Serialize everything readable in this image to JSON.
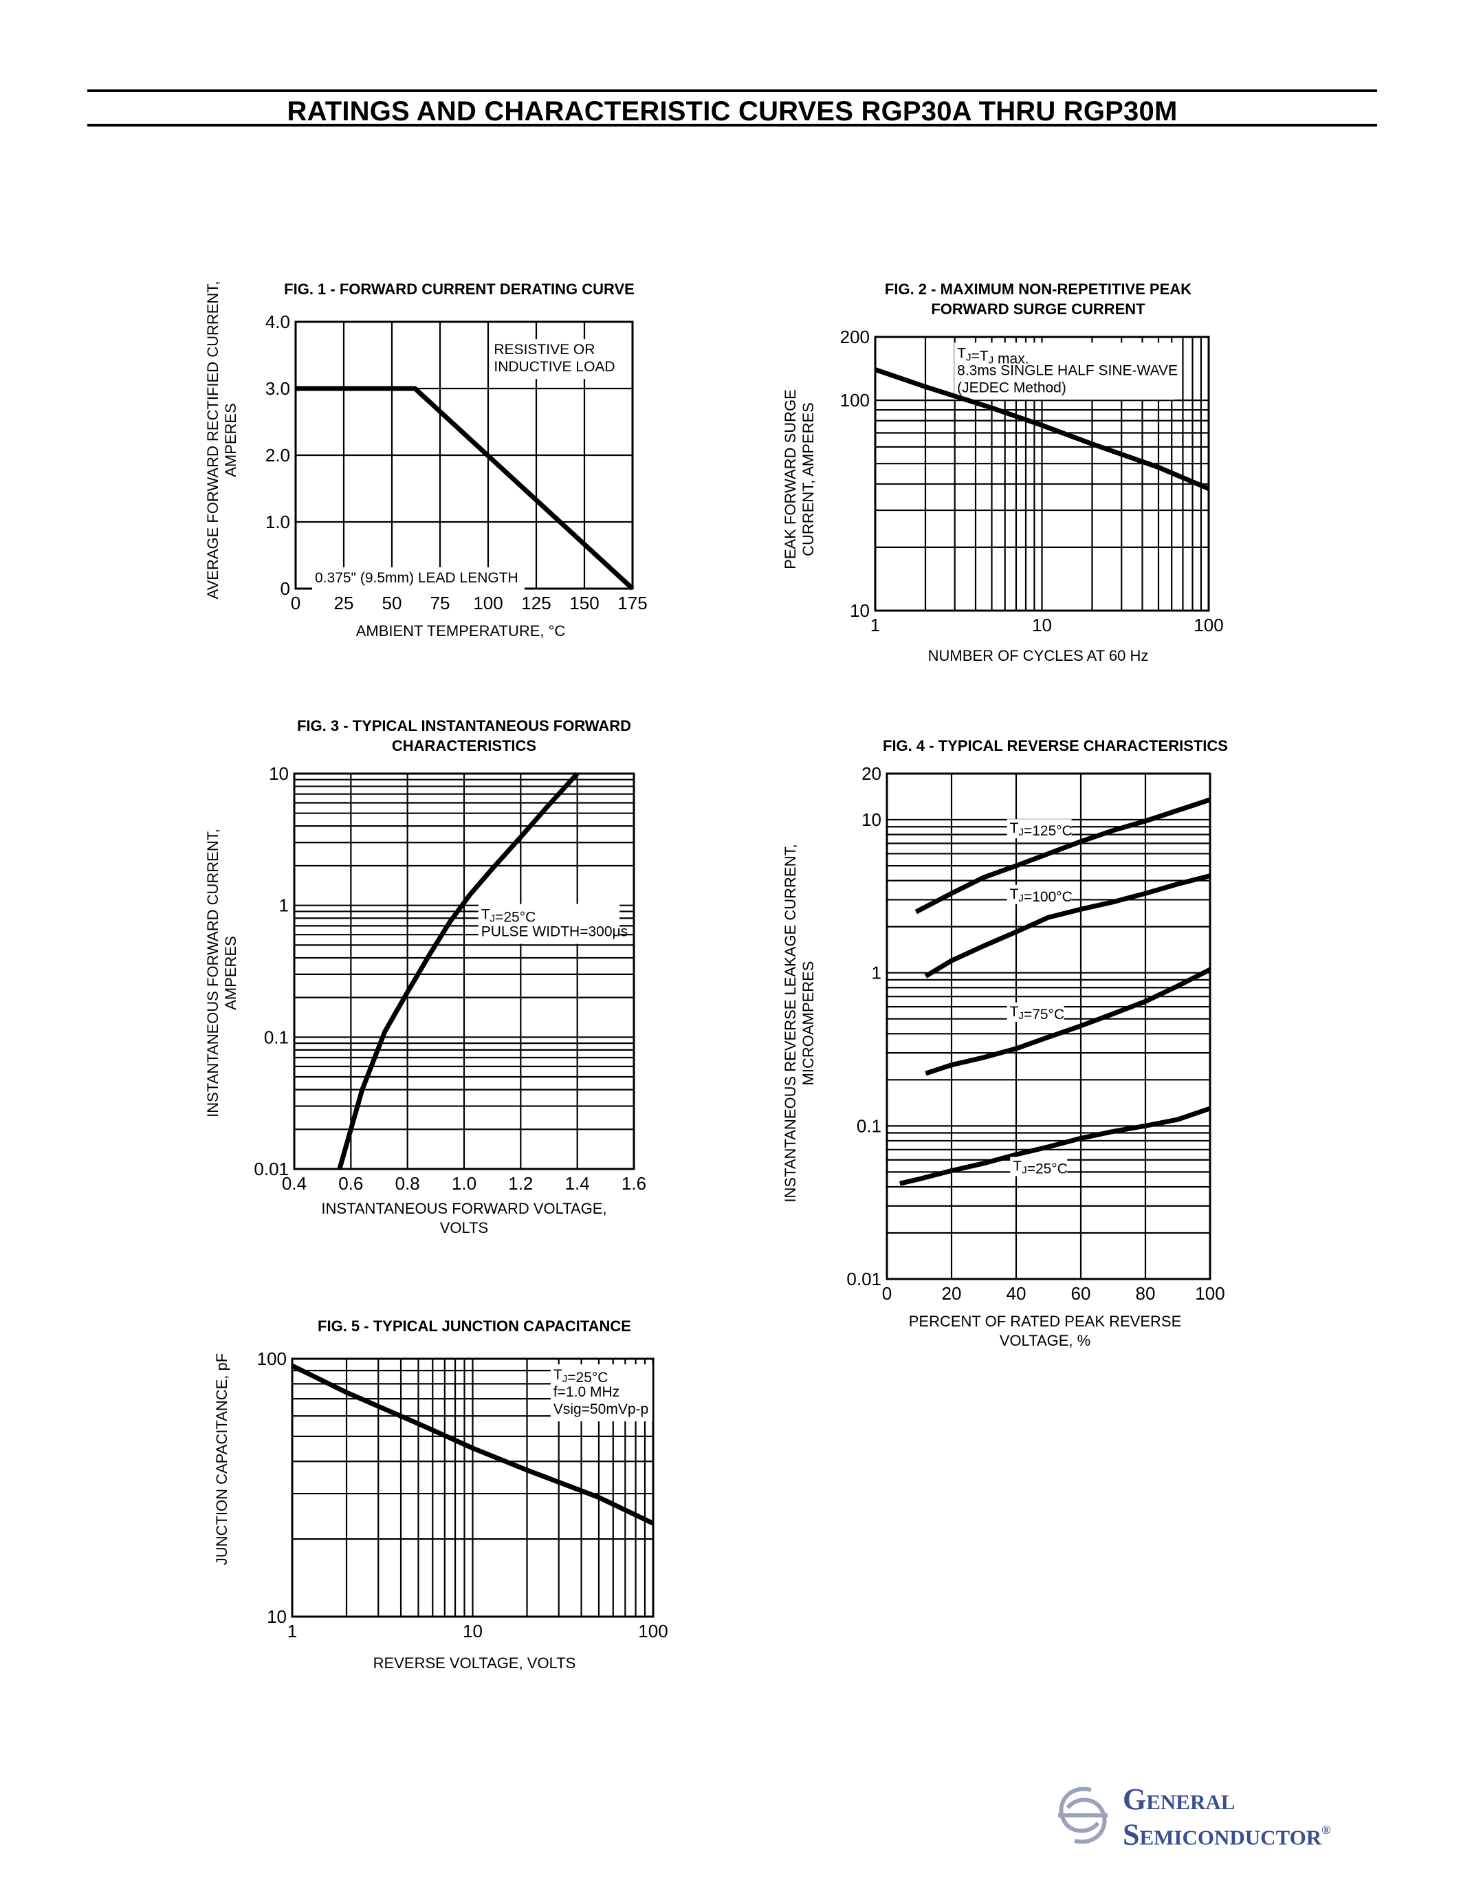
{
  "page": {
    "title": "RATINGS AND CHARACTERISTIC CURVES RGP30A THRU RGP30M",
    "logo": {
      "line1": "General",
      "line2": "Semiconductor",
      "mark": "®",
      "icon": "gs-logo-icon",
      "color": "#3b4f8f"
    }
  },
  "chart_data": [
    {
      "id": "fig1",
      "type": "line",
      "title": "FIG. 1 -  FORWARD CURRENT DERATING CURVE",
      "xlabel": "AMBIENT TEMPERATURE, °C",
      "ylabel": [
        "AVERAGE FORWARD RECTIFIED CURRENT,",
        "AMPERES"
      ],
      "xscale": "linear",
      "yscale": "linear",
      "xlim": [
        0,
        175
      ],
      "ylim": [
        0,
        4
      ],
      "xticks": [
        0,
        25,
        50,
        75,
        100,
        125,
        150,
        175
      ],
      "xtick_labels": [
        "0",
        "25",
        "50",
        "75",
        "100",
        "125",
        "150",
        "175"
      ],
      "yticks": [
        0,
        1,
        2,
        3,
        4
      ],
      "ytick_labels": [
        "0",
        "1.0",
        "2.0",
        "3.0",
        "4.0"
      ],
      "grid_x": [
        25,
        50,
        75,
        100,
        125,
        150
      ],
      "grid_y": [
        1,
        2,
        3
      ],
      "annotations": [
        {
          "lines": [
            "RESISTIVE OR",
            "INDUCTIVE LOAD"
          ],
          "x": 103,
          "y": 3.72
        },
        {
          "lines": [
            "0.375\" (9.5mm) LEAD LENGTH"
          ],
          "x": 10,
          "y": 0.3
        }
      ],
      "series": [
        {
          "x": [
            0,
            62,
            175
          ],
          "y": [
            3,
            3,
            0
          ]
        }
      ]
    },
    {
      "id": "fig2",
      "type": "line",
      "title": [
        "FIG. 2 - MAXIMUM NON-REPETITIVE PEAK",
        "FORWARD SURGE CURRENT"
      ],
      "xlabel": "NUMBER OF CYCLES AT 60 Hz",
      "ylabel": [
        "PEAK FORWARD SURGE",
        "CURRENT, AMPERES"
      ],
      "xscale": "log",
      "yscale": "log",
      "xlim": [
        1,
        100
      ],
      "ylim": [
        10,
        200
      ],
      "xticks": [
        1,
        10,
        100
      ],
      "xtick_labels": [
        "1",
        "10",
        "100"
      ],
      "yticks": [
        10,
        100,
        200
      ],
      "ytick_labels": [
        "10",
        "100",
        "200"
      ],
      "annotations": [
        {
          "lines": [
            "TJ=TJ max.",
            "8.3ms SINGLE HALF SINE-WAVE",
            "(JEDEC Method)"
          ],
          "x": 3.1,
          "y": 185
        }
      ],
      "series": [
        {
          "x": [
            1,
            2,
            5,
            10,
            20,
            50,
            100
          ],
          "y": [
            140,
            116,
            92,
            76,
            62,
            48,
            38
          ]
        }
      ]
    },
    {
      "id": "fig3",
      "type": "line",
      "title": [
        "FIG. 3 - TYPICAL INSTANTANEOUS FORWARD",
        "CHARACTERISTICS"
      ],
      "xlabel": [
        "INSTANTANEOUS FORWARD VOLTAGE,",
        "VOLTS"
      ],
      "ylabel": [
        "INSTANTANEOUS FORWARD CURRENT,",
        "AMPERES"
      ],
      "xscale": "linear",
      "yscale": "log",
      "xlim": [
        0.4,
        1.6
      ],
      "ylim": [
        0.01,
        10
      ],
      "xticks": [
        0.4,
        0.6,
        0.8,
        1.0,
        1.2,
        1.4,
        1.6
      ],
      "xtick_labels": [
        "0.4",
        "0.6",
        "0.8",
        "1.0",
        "1.2",
        "1.4",
        "1.6"
      ],
      "yticks": [
        0.01,
        0.1,
        1,
        10
      ],
      "ytick_labels": [
        "0.01",
        "0.1",
        "1",
        "10"
      ],
      "grid_x": [
        0.6,
        0.8,
        1.0,
        1.2,
        1.4
      ],
      "annotations": [
        {
          "lines": [
            "TJ=25°C",
            "PULSE WIDTH=300μs"
          ],
          "x": 1.06,
          "y": 1.0
        }
      ],
      "series": [
        {
          "x": [
            0.56,
            0.64,
            0.72,
            0.8,
            0.88,
            0.95,
            1.02,
            1.1,
            1.2,
            1.3,
            1.4
          ],
          "y": [
            0.01,
            0.04,
            0.11,
            0.22,
            0.43,
            0.75,
            1.2,
            1.9,
            3.3,
            5.8,
            10
          ]
        }
      ]
    },
    {
      "id": "fig4",
      "type": "line",
      "title": "FIG. 4 - TYPICAL REVERSE CHARACTERISTICS",
      "xlabel": [
        "PERCENT OF RATED PEAK REVERSE",
        "VOLTAGE, %"
      ],
      "ylabel": [
        "INSTANTANEOUS REVERSE LEAKAGE CURRENT,",
        "MICROAMPERES"
      ],
      "xscale": "linear",
      "yscale": "log",
      "xlim": [
        0,
        100
      ],
      "ylim": [
        0.01,
        20
      ],
      "xticks": [
        0,
        20,
        40,
        60,
        80,
        100
      ],
      "xtick_labels": [
        "0",
        "20",
        "40",
        "60",
        "80",
        "100"
      ],
      "yticks": [
        0.01,
        0.1,
        1,
        10,
        20
      ],
      "ytick_labels": [
        "0.01",
        "0.1",
        "1",
        "10",
        "20"
      ],
      "grid_x": [
        20,
        40,
        60,
        80
      ],
      "series": [
        {
          "name": "TJ=125°C",
          "x": [
            9,
            20,
            30,
            40,
            50,
            60,
            70,
            80,
            90,
            100
          ],
          "y": [
            2.5,
            3.3,
            4.2,
            5.0,
            6.0,
            7.2,
            8.5,
            9.8,
            11.5,
            13.5
          ],
          "label_x": 38,
          "label_y": 8.2
        },
        {
          "name": "TJ=100°C",
          "x": [
            12,
            20,
            30,
            40,
            50,
            60,
            70,
            80,
            90,
            100
          ],
          "y": [
            0.95,
            1.2,
            1.5,
            1.85,
            2.3,
            2.6,
            2.9,
            3.3,
            3.8,
            4.3
          ],
          "label_x": 38,
          "label_y": 3.05
        },
        {
          "name": "TJ=75°C",
          "x": [
            12,
            20,
            30,
            40,
            50,
            60,
            70,
            80,
            90,
            100
          ],
          "y": [
            0.22,
            0.25,
            0.28,
            0.32,
            0.38,
            0.45,
            0.54,
            0.65,
            0.82,
            1.05
          ],
          "label_x": 38,
          "label_y": 0.52
        },
        {
          "name": "TJ=25°C",
          "x": [
            4,
            10,
            20,
            30,
            40,
            50,
            60,
            70,
            80,
            90,
            100
          ],
          "y": [
            0.042,
            0.045,
            0.051,
            0.057,
            0.065,
            0.073,
            0.083,
            0.092,
            0.1,
            0.11,
            0.13
          ],
          "label_x": 39,
          "label_y": 0.051
        }
      ]
    },
    {
      "id": "fig5",
      "type": "line",
      "title": "FIG. 5 - TYPICAL JUNCTION CAPACITANCE",
      "xlabel": "REVERSE VOLTAGE, VOLTS",
      "ylabel": "JUNCTION CAPACITANCE, pF",
      "xscale": "log",
      "yscale": "log",
      "xlim": [
        1,
        100
      ],
      "ylim": [
        10,
        100
      ],
      "xticks": [
        1,
        10,
        100
      ],
      "xtick_labels": [
        "1",
        "10",
        "100"
      ],
      "yticks": [
        10,
        100
      ],
      "ytick_labels": [
        "10",
        "100"
      ],
      "annotations": [
        {
          "lines": [
            "TJ=25°C",
            "f=1.0 MHz",
            "Vsig=50mVp-p"
          ],
          "x": 28,
          "y": 94
        }
      ],
      "series": [
        {
          "x": [
            1,
            2,
            5,
            10,
            20,
            50,
            100
          ],
          "y": [
            94,
            74,
            56,
            45,
            37,
            29,
            23
          ]
        }
      ]
    }
  ]
}
